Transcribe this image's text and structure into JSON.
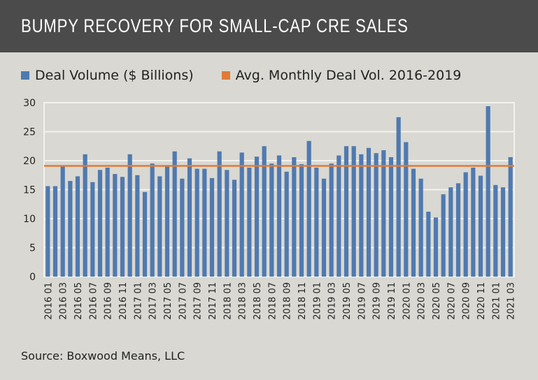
{
  "chart_data": {
    "type": "bar",
    "title": "BUMPY RECOVERY FOR SMALL-CAP CRE SALES",
    "source": "Source: Boxwood Means, LLC",
    "ylim": [
      0,
      30
    ],
    "yticks": [
      0,
      5,
      10,
      15,
      20,
      25,
      30
    ],
    "grid": true,
    "legend_position": "top",
    "colors": {
      "bars": "#4f7ab0",
      "avg_line": "#e07a36"
    },
    "categories": [
      "2016 01",
      "2016 02",
      "2016 03",
      "2016 04",
      "2016 05",
      "2016 06",
      "2016 07",
      "2016 08",
      "2016 09",
      "2016 10",
      "2016 11",
      "2016 12",
      "2017 01",
      "2017 02",
      "2017 03",
      "2017 04",
      "2017 05",
      "2017 06",
      "2017 07",
      "2017 08",
      "2017 09",
      "2017 10",
      "2017 11",
      "2017 12",
      "2018 01",
      "2018 02",
      "2018 03",
      "2018 04",
      "2018 05",
      "2018 06",
      "2018 07",
      "2018 08",
      "2018 09",
      "2018 10",
      "2018 11",
      "2018 12",
      "2019 01",
      "2019 02",
      "2019 03",
      "2019 04",
      "2019 05",
      "2019 06",
      "2019 07",
      "2019 08",
      "2019 09",
      "2019 10",
      "2019 11",
      "2019 12",
      "2020 01",
      "2020 02",
      "2020 03",
      "2020 04",
      "2020 05",
      "2020 06",
      "2020 07",
      "2020 08",
      "2020 09",
      "2020 10",
      "2020 11",
      "2020 12",
      "2021 01",
      "2021 02",
      "2021 03"
    ],
    "xtick_labels": [
      "2016 01",
      "2016 03",
      "2016 05",
      "2016 07",
      "2016 09",
      "2016 11",
      "2017 01",
      "2017 03",
      "2017 05",
      "2017 07",
      "2017 09",
      "2017 11",
      "2018 01",
      "2018 03",
      "2018 05",
      "2018 07",
      "2018 09",
      "2018 11",
      "2019 01",
      "2019 03",
      "2019 05",
      "2019 07",
      "2019 09",
      "2019 11",
      "2020 01",
      "2020 03",
      "2020 05",
      "2020 07",
      "2020 09",
      "2020 11",
      "2021 01",
      "2021 03"
    ],
    "series": [
      {
        "name": "Deal Volume ($ Billions)",
        "type": "bar",
        "values": [
          15.6,
          15.6,
          19.0,
          16.5,
          17.3,
          21.1,
          16.3,
          18.4,
          18.8,
          17.7,
          17.2,
          21.1,
          17.5,
          14.6,
          19.5,
          17.3,
          19.1,
          21.6,
          16.9,
          20.4,
          18.6,
          18.6,
          17.0,
          21.6,
          18.4,
          16.7,
          21.4,
          18.8,
          20.7,
          22.5,
          19.5,
          20.9,
          18.1,
          20.6,
          19.4,
          23.4,
          18.8,
          16.9,
          19.5,
          20.9,
          22.5,
          22.5,
          21.1,
          22.2,
          21.3,
          21.8,
          20.6,
          27.5,
          23.2,
          18.6,
          16.9,
          11.2,
          10.2,
          14.2,
          15.4,
          16.1,
          18.0,
          18.8,
          17.4,
          29.4,
          15.8,
          15.4,
          20.6
        ]
      },
      {
        "name": "Avg. Monthly Deal Vol. 2016-2019",
        "type": "line",
        "value": 19.1
      }
    ]
  }
}
